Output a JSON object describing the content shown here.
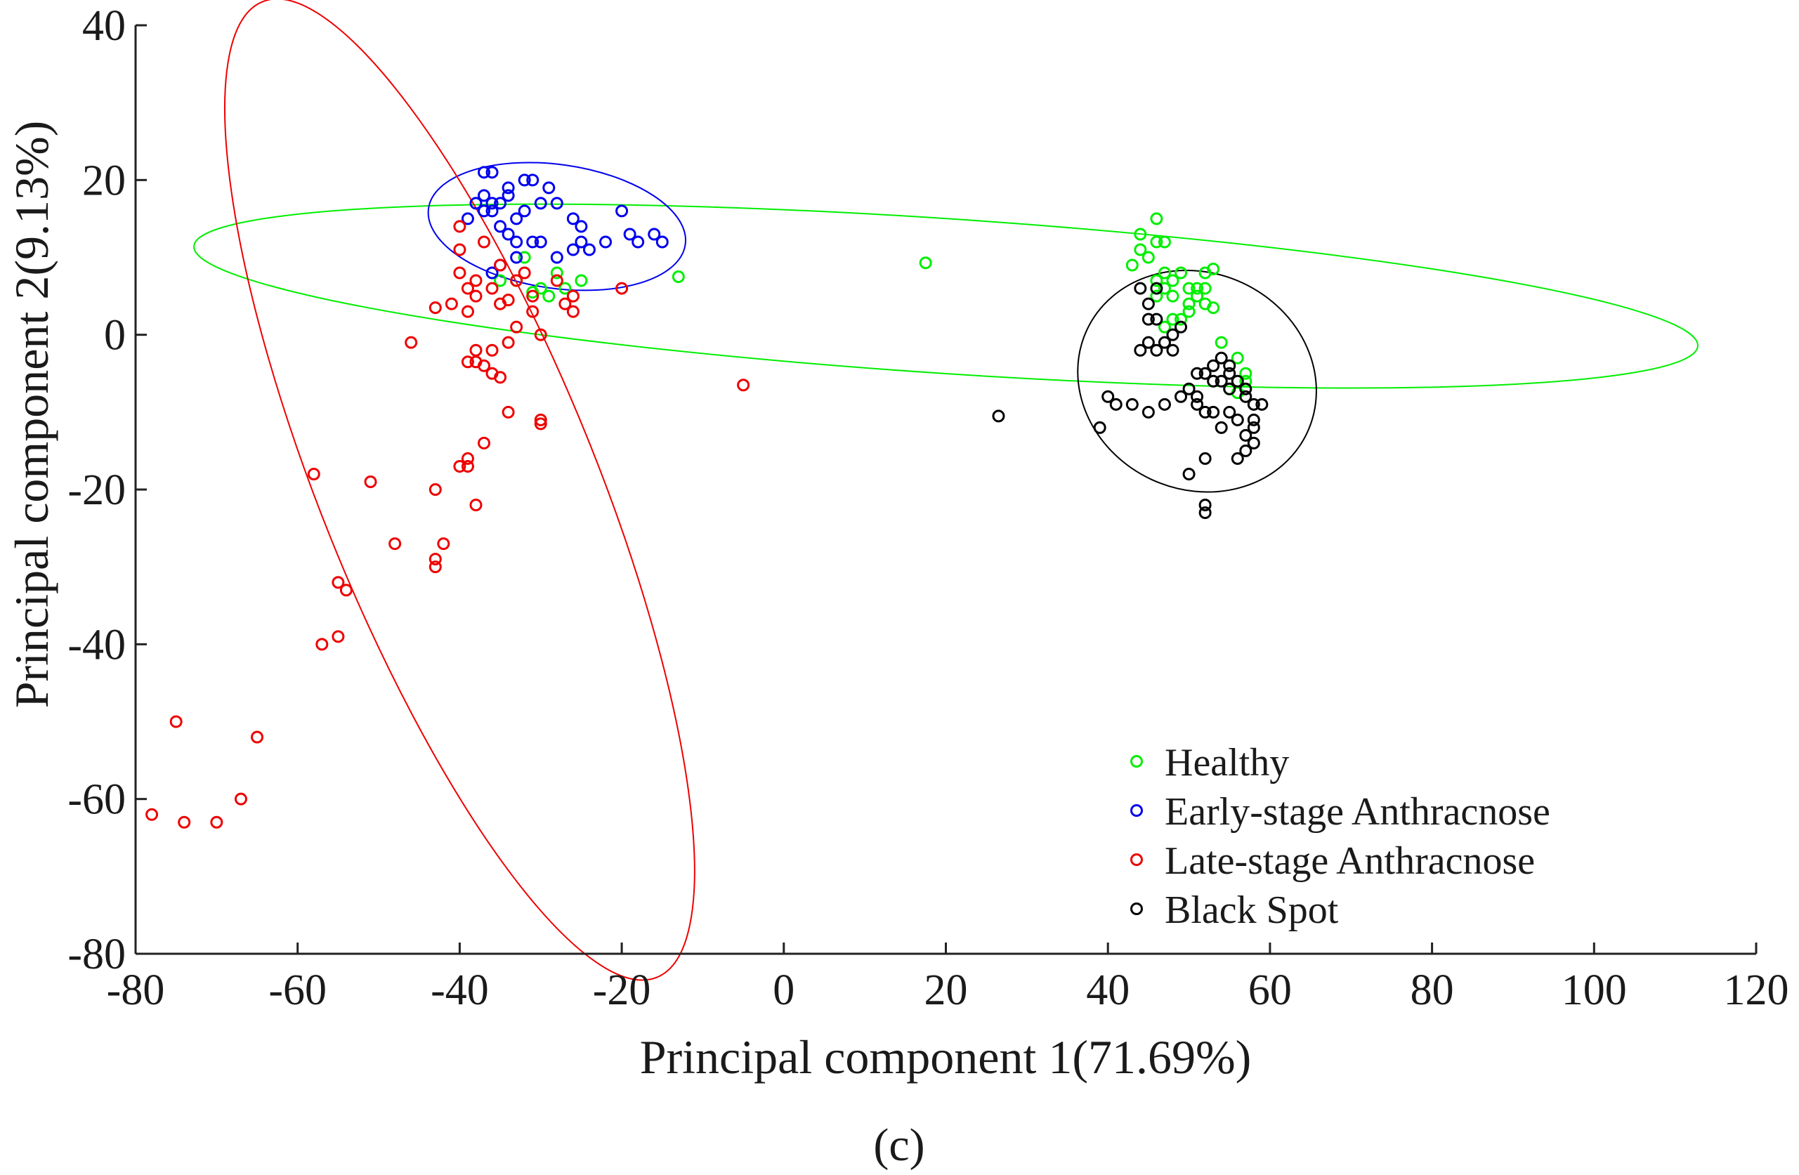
{
  "chart_data": {
    "type": "scatter",
    "title": "",
    "xlabel": "Principal component 1(71.69%)",
    "ylabel": "Principal component 2(9.13%)",
    "xlim": [
      -80,
      120
    ],
    "ylim": [
      -80,
      40
    ],
    "xticks": [
      -80,
      -60,
      -40,
      -20,
      0,
      20,
      40,
      60,
      80,
      100,
      120
    ],
    "yticks": [
      -80,
      -60,
      -40,
      -20,
      0,
      20,
      40
    ],
    "grid": false,
    "legend_position": "bottom-right",
    "panel_label": "(c)",
    "series": [
      {
        "name": "Healthy",
        "color": "#00ee00",
        "points": [
          [
            -13,
            7.5
          ],
          [
            17.5,
            9.3
          ],
          [
            -33,
            7
          ],
          [
            -31,
            5.5
          ],
          [
            -30,
            6
          ],
          [
            -32,
            10
          ],
          [
            -28,
            8
          ],
          [
            -25,
            7
          ],
          [
            -27,
            6
          ],
          [
            -35,
            7
          ],
          [
            -29,
            5
          ],
          [
            43,
            9
          ],
          [
            44,
            11
          ],
          [
            44,
            13
          ],
          [
            46,
            15
          ],
          [
            46,
            12
          ],
          [
            47,
            12
          ],
          [
            45,
            10
          ],
          [
            47,
            8
          ],
          [
            48,
            7
          ],
          [
            47,
            6
          ],
          [
            48,
            5
          ],
          [
            46,
            7
          ],
          [
            49,
            8
          ],
          [
            50,
            6
          ],
          [
            51,
            5
          ],
          [
            52,
            4
          ],
          [
            53,
            3.5
          ],
          [
            52,
            8
          ],
          [
            53,
            8.5
          ],
          [
            51,
            6
          ],
          [
            50,
            3
          ],
          [
            49,
            2
          ],
          [
            47,
            1
          ],
          [
            50,
            4
          ],
          [
            52,
            6
          ],
          [
            46,
            5
          ],
          [
            48,
            2
          ],
          [
            54,
            -1
          ],
          [
            56,
            -3
          ],
          [
            57,
            -5
          ],
          [
            55,
            -7
          ],
          [
            56,
            -7.5
          ],
          [
            57,
            -6
          ]
        ]
      },
      {
        "name": "Early-stage Anthracnose",
        "color": "#0000ee",
        "points": [
          [
            -39,
            15
          ],
          [
            -38,
            17
          ],
          [
            -37,
            18
          ],
          [
            -36,
            17
          ],
          [
            -37,
            21
          ],
          [
            -36,
            21
          ],
          [
            -35,
            17
          ],
          [
            -34,
            18
          ],
          [
            -34,
            19
          ],
          [
            -32,
            20
          ],
          [
            -31,
            20
          ],
          [
            -29,
            19
          ],
          [
            -28,
            17
          ],
          [
            -36,
            16
          ],
          [
            -35,
            14
          ],
          [
            -34,
            13
          ],
          [
            -33,
            12
          ],
          [
            -31,
            12
          ],
          [
            -30,
            12
          ],
          [
            -33,
            10
          ],
          [
            -35,
            9
          ],
          [
            -36,
            8
          ],
          [
            -32,
            16
          ],
          [
            -26,
            15
          ],
          [
            -25,
            14
          ],
          [
            -25,
            12
          ],
          [
            -24,
            11
          ],
          [
            -22,
            12
          ],
          [
            -20,
            16
          ],
          [
            -19,
            13
          ],
          [
            -18,
            12
          ],
          [
            -16,
            13
          ],
          [
            -15,
            12
          ],
          [
            -37,
            16
          ],
          [
            -33,
            15
          ],
          [
            -30,
            17
          ],
          [
            -26,
            11
          ],
          [
            -28,
            10
          ]
        ]
      },
      {
        "name": "Late-stage Anthracnose",
        "color": "#ee0000",
        "points": [
          [
            -40,
            14
          ],
          [
            -40,
            11
          ],
          [
            -37,
            12
          ],
          [
            -35,
            9
          ],
          [
            -32,
            8
          ],
          [
            -40,
            8
          ],
          [
            -38,
            7
          ],
          [
            -36,
            6
          ],
          [
            -33,
            7
          ],
          [
            -31,
            5
          ],
          [
            -28,
            7
          ],
          [
            -26,
            5
          ],
          [
            -27,
            4
          ],
          [
            -26,
            3
          ],
          [
            -20,
            6
          ],
          [
            -39,
            6
          ],
          [
            -38,
            5
          ],
          [
            -41,
            4
          ],
          [
            -39,
            3
          ],
          [
            -43,
            3.5
          ],
          [
            -35,
            4
          ],
          [
            -34,
            4.5
          ],
          [
            -31,
            3
          ],
          [
            -33,
            1
          ],
          [
            -30,
            0
          ],
          [
            -46,
            -1
          ],
          [
            -39,
            -3.5
          ],
          [
            -38,
            -3.5
          ],
          [
            -37,
            -4
          ],
          [
            -36,
            -5
          ],
          [
            -35,
            -5.5
          ],
          [
            -36,
            -2
          ],
          [
            -34,
            -1
          ],
          [
            -38,
            -2
          ],
          [
            -5,
            -6.5
          ],
          [
            -34,
            -10
          ],
          [
            -30,
            -11
          ],
          [
            -30,
            -11.5
          ],
          [
            -37,
            -14
          ],
          [
            -39,
            -16
          ],
          [
            -40,
            -17
          ],
          [
            -39,
            -17
          ],
          [
            -58,
            -18
          ],
          [
            -51,
            -19
          ],
          [
            -43,
            -20
          ],
          [
            -38,
            -22
          ],
          [
            -48,
            -27
          ],
          [
            -42,
            -27
          ],
          [
            -43,
            -29
          ],
          [
            -43,
            -30
          ],
          [
            -55,
            -32
          ],
          [
            -54,
            -33
          ],
          [
            -55,
            -39
          ],
          [
            -57,
            -40
          ],
          [
            -75,
            -50
          ],
          [
            -65,
            -52
          ],
          [
            -67,
            -60
          ],
          [
            -78,
            -62
          ],
          [
            -74,
            -63
          ],
          [
            -70,
            -63
          ]
        ]
      },
      {
        "name": "Black Spot",
        "color": "#000000",
        "points": [
          [
            26.5,
            -10.5
          ],
          [
            40,
            -8
          ],
          [
            41,
            -9
          ],
          [
            43,
            -9
          ],
          [
            39,
            -12
          ],
          [
            44,
            6
          ],
          [
            45,
            4
          ],
          [
            45,
            2
          ],
          [
            46,
            2
          ],
          [
            45,
            -1
          ],
          [
            46,
            -2
          ],
          [
            47,
            -1
          ],
          [
            48,
            0
          ],
          [
            49,
            1
          ],
          [
            48,
            -2
          ],
          [
            44,
            -2
          ],
          [
            46,
            6
          ],
          [
            47,
            -9
          ],
          [
            49,
            -8
          ],
          [
            50,
            -7
          ],
          [
            51,
            -9
          ],
          [
            52,
            -5
          ],
          [
            53,
            -4
          ],
          [
            54,
            -3
          ],
          [
            55,
            -5
          ],
          [
            56,
            -6
          ],
          [
            57,
            -7
          ],
          [
            58,
            -9
          ],
          [
            59,
            -9
          ],
          [
            58,
            -12
          ],
          [
            57,
            -13
          ],
          [
            56,
            -11
          ],
          [
            55,
            -10
          ],
          [
            54,
            -12
          ],
          [
            52,
            -10
          ],
          [
            51,
            -8
          ],
          [
            53,
            -6
          ],
          [
            55,
            -4
          ],
          [
            57,
            -8
          ],
          [
            58,
            -14
          ],
          [
            57,
            -15
          ],
          [
            56,
            -16
          ],
          [
            52,
            -16
          ],
          [
            50,
            -18
          ],
          [
            52,
            -22
          ],
          [
            52,
            -23
          ],
          [
            55,
            -7
          ],
          [
            53,
            -10
          ],
          [
            54,
            -6
          ],
          [
            51,
            -5
          ],
          [
            45,
            -10
          ],
          [
            58,
            -11
          ]
        ]
      }
    ],
    "ellipses": [
      {
        "name": "Healthy",
        "color": "#00ee00",
        "cx": 20,
        "cy": 5,
        "rx": 93,
        "ry": 10,
        "angle_deg": -3.8
      },
      {
        "name": "Early-stage Anthracnose",
        "color": "#0000ee",
        "cx": -28,
        "cy": 14,
        "rx": 16,
        "ry": 8,
        "angle_deg": -8
      },
      {
        "name": "Late-stage Anthracnose",
        "color": "#ee0000",
        "cx": -40,
        "cy": -20,
        "rx": 17,
        "ry": 68,
        "angle_deg": 22
      },
      {
        "name": "Black Spot",
        "color": "#000000",
        "cx": 51,
        "cy": -6,
        "rx": 15,
        "ry": 14,
        "angle_deg": -25
      }
    ]
  }
}
